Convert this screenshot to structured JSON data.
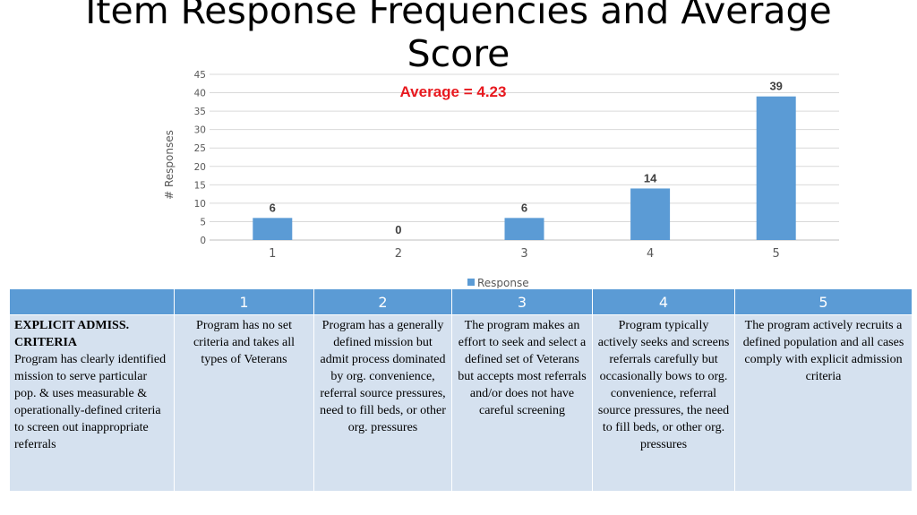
{
  "title": "Item Response Frequencies and Average Score",
  "average_label": "Average = 4.23",
  "colors": {
    "bar": "#5b9bd5",
    "average": "#e8191f",
    "table_header": "#5b9bd5",
    "table_body": "#d5e1ef"
  },
  "chart_data": {
    "type": "bar",
    "categories": [
      "1",
      "2",
      "3",
      "4",
      "5"
    ],
    "series": [
      {
        "name": "Response",
        "values": [
          6,
          0,
          6,
          14,
          39
        ]
      }
    ],
    "ylabel": "# Responses",
    "ylim": [
      0,
      45
    ],
    "yticks": [
      0,
      5,
      10,
      15,
      20,
      25,
      30,
      35,
      40,
      45
    ],
    "grid": true,
    "legend": "bottom",
    "data_labels": [
      "6",
      "0",
      "6",
      "14",
      "39"
    ],
    "annotation": "Average = 4.23"
  },
  "table": {
    "headers": [
      "",
      "1",
      "2",
      "3",
      "4",
      "5"
    ],
    "criterion_title": "EXPLICIT ADMISS. CRITERIA",
    "criterion_text": "Program has clearly identified mission to serve particular pop. & uses measurable & operationally-defined criteria to screen out inappropriate referrals",
    "cells": [
      "Program has no set criteria and takes all types of Veterans",
      "Program has a generally defined mission but admit process dominated by org. convenience, referral source pressures, need to fill beds, or other org. pressures",
      "The program makes an effort to seek and select a defined set of Veterans but accepts most referrals and/or does not have careful screening",
      "Program typically actively seeks and screens referrals carefully but occasionally bows to org. convenience, referral source pressures, the need to fill beds, or other org. pressures",
      "The program actively recruits a defined population and all cases comply with explicit admission criteria"
    ]
  }
}
